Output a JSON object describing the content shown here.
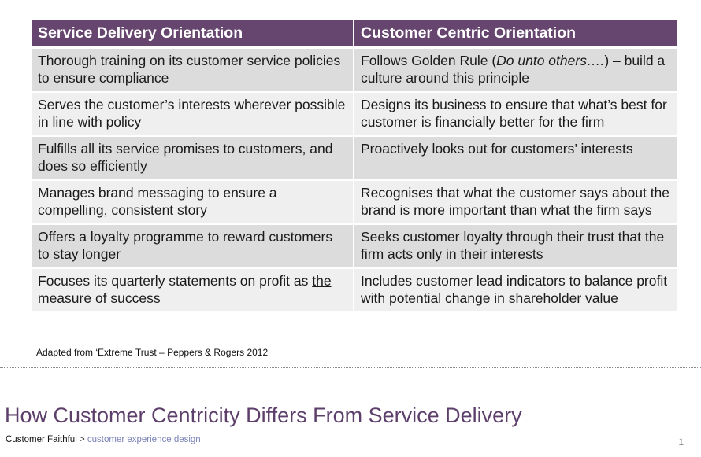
{
  "table": {
    "headers": [
      "Service Delivery Orientation",
      "Customer Centric Orientation"
    ],
    "rows": [
      {
        "service": "Thorough training on its customer service policies to ensure compliance",
        "customer_pre": "Follows Golden Rule (",
        "customer_italic": "Do unto others….",
        "customer_post": ") – build a culture around this principle"
      },
      {
        "service": "Serves the customer’s interests wherever possible in line with policy",
        "customer": "Designs its business to ensure that what’s best for customer is financially better for the firm"
      },
      {
        "service": "Fulfills all its service promises to customers, and does so efficiently",
        "customer": "Proactively looks out for customers’ interests"
      },
      {
        "service": "Manages brand messaging to ensure a compelling, consistent story",
        "customer": "Recognises that what the customer says about the brand is more important than what the firm says"
      },
      {
        "service": "Offers a loyalty programme to reward customers to stay longer",
        "customer": "Seeks customer loyalty through their trust that the firm acts only in their interests"
      },
      {
        "service_pre": "Focuses its quarterly statements on profit as ",
        "service_underlined": "the",
        "service_post": " measure of success",
        "customer": "Includes customer lead indicators to balance profit with potential change in shareholder value"
      }
    ]
  },
  "caption": "Adapted from ‘Extreme Trust – Peppers & Rogers 2012",
  "title": "How Customer Centricity Differs From Service Delivery",
  "footer": {
    "brand": "Customer Faithful",
    "separator": " > ",
    "section": "customer experience design"
  },
  "page_number": "1",
  "colors": {
    "header_bg": "#66456f",
    "row_dark": "#dcdcdc",
    "row_light": "#efefef",
    "title": "#5d3f6b",
    "footer_link": "#7a82b8"
  }
}
